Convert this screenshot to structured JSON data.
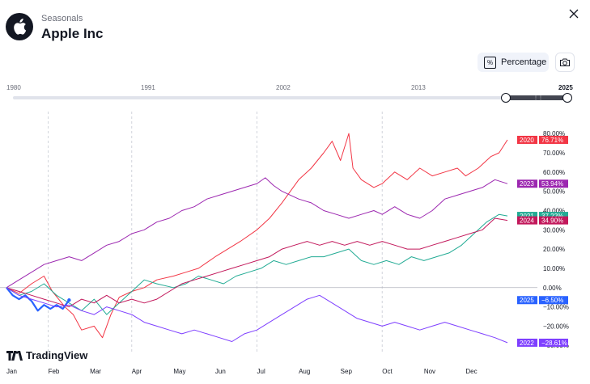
{
  "header": {
    "subtitle": "Seasonals",
    "title": "Apple Inc",
    "percentage_label": "Percentage",
    "percentage_icon": "%"
  },
  "icons": {
    "logo": "apple-logo-icon",
    "close": "close-icon",
    "camera": "camera-icon"
  },
  "timeline": {
    "labels": [
      "1980",
      "1991",
      "2002",
      "2013",
      "2025"
    ],
    "range_start_year": 2020,
    "range_end_year": 2025
  },
  "branding": {
    "name": "TradingView"
  },
  "chart_data": {
    "type": "line",
    "title": "",
    "xlabel": "",
    "ylabel": "",
    "x_ticks": [
      "Jan",
      "Feb",
      "Mar",
      "Apr",
      "May",
      "Jun",
      "Jul",
      "Aug",
      "Sep",
      "Oct",
      "Nov",
      "Dec"
    ],
    "x_range": [
      1,
      13
    ],
    "y_ticks": [
      "80.00%",
      "70.00%",
      "60.00%",
      "50.00%",
      "40.00%",
      "30.00%",
      "20.00%",
      "10.00%",
      "0.00%",
      "−10.00%",
      "−20.00%",
      "−30.00%"
    ],
    "y_range": [
      -32,
      83
    ],
    "grid": {
      "vertical": "dashed",
      "horizontal": false
    },
    "series": [
      {
        "name": "2020",
        "color": "#f23645",
        "end_label": "76.71%",
        "points": [
          [
            1,
            0
          ],
          [
            1.3,
            -3
          ],
          [
            1.6,
            2
          ],
          [
            1.9,
            6
          ],
          [
            2.1,
            -2
          ],
          [
            2.4,
            -10
          ],
          [
            2.6,
            -14
          ],
          [
            2.8,
            -22
          ],
          [
            3.1,
            -20
          ],
          [
            3.3,
            -26
          ],
          [
            3.5,
            -14
          ],
          [
            3.7,
            -5
          ],
          [
            4,
            -2
          ],
          [
            4.3,
            0
          ],
          [
            4.6,
            4
          ],
          [
            5,
            6
          ],
          [
            5.3,
            8
          ],
          [
            5.6,
            10
          ],
          [
            6,
            16
          ],
          [
            6.3,
            20
          ],
          [
            6.6,
            24
          ],
          [
            7,
            30
          ],
          [
            7.3,
            36
          ],
          [
            7.6,
            44
          ],
          [
            7.8,
            50
          ],
          [
            8,
            56
          ],
          [
            8.3,
            62
          ],
          [
            8.6,
            70
          ],
          [
            8.8,
            76
          ],
          [
            9,
            66
          ],
          [
            9.2,
            80
          ],
          [
            9.3,
            62
          ],
          [
            9.5,
            56
          ],
          [
            9.8,
            52
          ],
          [
            10,
            54
          ],
          [
            10.3,
            60
          ],
          [
            10.6,
            56
          ],
          [
            10.9,
            62
          ],
          [
            11.2,
            58
          ],
          [
            11.5,
            60
          ],
          [
            11.8,
            62
          ],
          [
            12,
            58
          ],
          [
            12.3,
            62
          ],
          [
            12.6,
            68
          ],
          [
            12.8,
            70
          ],
          [
            13,
            76.71
          ]
        ]
      },
      {
        "name": "2023",
        "color": "#9c27b0",
        "end_label": "53.94%",
        "points": [
          [
            1,
            0
          ],
          [
            1.3,
            4
          ],
          [
            1.6,
            8
          ],
          [
            1.9,
            12
          ],
          [
            2.2,
            14
          ],
          [
            2.5,
            16
          ],
          [
            2.8,
            14
          ],
          [
            3.1,
            18
          ],
          [
            3.4,
            22
          ],
          [
            3.7,
            24
          ],
          [
            4,
            28
          ],
          [
            4.3,
            30
          ],
          [
            4.6,
            34
          ],
          [
            4.9,
            36
          ],
          [
            5.2,
            40
          ],
          [
            5.5,
            42
          ],
          [
            5.8,
            46
          ],
          [
            6.1,
            48
          ],
          [
            6.4,
            50
          ],
          [
            6.7,
            52
          ],
          [
            7,
            54
          ],
          [
            7.2,
            57
          ],
          [
            7.4,
            53
          ],
          [
            7.6,
            50
          ],
          [
            7.8,
            48
          ],
          [
            8,
            46
          ],
          [
            8.3,
            44
          ],
          [
            8.6,
            40
          ],
          [
            8.9,
            38
          ],
          [
            9.2,
            36
          ],
          [
            9.5,
            38
          ],
          [
            9.8,
            40
          ],
          [
            10,
            38
          ],
          [
            10.3,
            42
          ],
          [
            10.6,
            38
          ],
          [
            10.9,
            36
          ],
          [
            11.2,
            40
          ],
          [
            11.5,
            46
          ],
          [
            11.8,
            48
          ],
          [
            12.1,
            50
          ],
          [
            12.4,
            52
          ],
          [
            12.7,
            56
          ],
          [
            13,
            53.94
          ]
        ]
      },
      {
        "name": "2021",
        "color": "#22ab94",
        "end_label": "37.22%",
        "points": [
          [
            1,
            0
          ],
          [
            1.3,
            -4
          ],
          [
            1.6,
            -2
          ],
          [
            1.9,
            2
          ],
          [
            2.2,
            -4
          ],
          [
            2.5,
            -8
          ],
          [
            2.8,
            -12
          ],
          [
            3.1,
            -6
          ],
          [
            3.4,
            -14
          ],
          [
            3.7,
            -8
          ],
          [
            4,
            -2
          ],
          [
            4.3,
            4
          ],
          [
            4.6,
            2
          ],
          [
            5,
            0
          ],
          [
            5.3,
            2
          ],
          [
            5.6,
            6
          ],
          [
            5.9,
            4
          ],
          [
            6.2,
            2
          ],
          [
            6.5,
            6
          ],
          [
            6.8,
            8
          ],
          [
            7.1,
            10
          ],
          [
            7.4,
            14
          ],
          [
            7.7,
            12
          ],
          [
            8,
            14
          ],
          [
            8.3,
            16
          ],
          [
            8.6,
            16
          ],
          [
            8.9,
            18
          ],
          [
            9.2,
            20
          ],
          [
            9.5,
            14
          ],
          [
            9.8,
            12
          ],
          [
            10.1,
            14
          ],
          [
            10.4,
            12
          ],
          [
            10.7,
            16
          ],
          [
            11,
            14
          ],
          [
            11.3,
            16
          ],
          [
            11.6,
            18
          ],
          [
            11.9,
            22
          ],
          [
            12.2,
            28
          ],
          [
            12.5,
            34
          ],
          [
            12.8,
            38
          ],
          [
            13,
            37.22
          ]
        ]
      },
      {
        "name": "2024",
        "color": "#c2185b",
        "end_label": "34.90%",
        "points": [
          [
            1,
            0
          ],
          [
            1.3,
            -2
          ],
          [
            1.6,
            -4
          ],
          [
            1.9,
            -6
          ],
          [
            2.2,
            -8
          ],
          [
            2.5,
            -10
          ],
          [
            2.8,
            -6
          ],
          [
            3.1,
            -8
          ],
          [
            3.4,
            -4
          ],
          [
            3.7,
            -8
          ],
          [
            4,
            -6
          ],
          [
            4.3,
            -8
          ],
          [
            4.6,
            -6
          ],
          [
            4.9,
            -2
          ],
          [
            5.2,
            2
          ],
          [
            5.5,
            4
          ],
          [
            5.8,
            6
          ],
          [
            6.1,
            8
          ],
          [
            6.4,
            10
          ],
          [
            6.7,
            12
          ],
          [
            7,
            14
          ],
          [
            7.3,
            16
          ],
          [
            7.6,
            20
          ],
          [
            7.9,
            22
          ],
          [
            8.2,
            24
          ],
          [
            8.5,
            22
          ],
          [
            8.8,
            24
          ],
          [
            9.1,
            22
          ],
          [
            9.4,
            24
          ],
          [
            9.7,
            22
          ],
          [
            10,
            24
          ],
          [
            10.3,
            22
          ],
          [
            10.6,
            20
          ],
          [
            10.9,
            20
          ],
          [
            11.2,
            22
          ],
          [
            11.5,
            24
          ],
          [
            11.8,
            26
          ],
          [
            12.1,
            28
          ],
          [
            12.4,
            30
          ],
          [
            12.7,
            36
          ],
          [
            13,
            34.9
          ]
        ]
      },
      {
        "name": "2025",
        "color": "#2962ff",
        "end_label": "−6.50%",
        "points": [
          [
            1,
            0
          ],
          [
            1.15,
            -4
          ],
          [
            1.3,
            -6
          ],
          [
            1.45,
            -4
          ],
          [
            1.6,
            -7
          ],
          [
            1.75,
            -12
          ],
          [
            1.9,
            -9
          ],
          [
            2.05,
            -11
          ],
          [
            2.2,
            -9
          ],
          [
            2.35,
            -11
          ],
          [
            2.5,
            -6.5
          ]
        ]
      },
      {
        "name": "2022",
        "color": "#7e3fff",
        "end_label": "−28.61%",
        "points": [
          [
            1,
            0
          ],
          [
            1.3,
            -4
          ],
          [
            1.6,
            -6
          ],
          [
            1.9,
            -8
          ],
          [
            2.2,
            -10
          ],
          [
            2.5,
            -9
          ],
          [
            2.8,
            -12
          ],
          [
            3.1,
            -14
          ],
          [
            3.4,
            -10
          ],
          [
            3.7,
            -12
          ],
          [
            4,
            -14
          ],
          [
            4.3,
            -18
          ],
          [
            4.6,
            -20
          ],
          [
            4.9,
            -22
          ],
          [
            5.2,
            -24
          ],
          [
            5.5,
            -22
          ],
          [
            5.8,
            -24
          ],
          [
            6.1,
            -26
          ],
          [
            6.4,
            -28
          ],
          [
            6.7,
            -24
          ],
          [
            7,
            -22
          ],
          [
            7.3,
            -18
          ],
          [
            7.6,
            -14
          ],
          [
            7.9,
            -10
          ],
          [
            8.2,
            -6
          ],
          [
            8.5,
            -4
          ],
          [
            8.8,
            -8
          ],
          [
            9.1,
            -12
          ],
          [
            9.4,
            -16
          ],
          [
            9.7,
            -18
          ],
          [
            10,
            -20
          ],
          [
            10.3,
            -18
          ],
          [
            10.6,
            -20
          ],
          [
            10.9,
            -22
          ],
          [
            11.2,
            -20
          ],
          [
            11.5,
            -18
          ],
          [
            11.8,
            -20
          ],
          [
            12.1,
            -22
          ],
          [
            12.4,
            -24
          ],
          [
            12.7,
            -26
          ],
          [
            13,
            -28.61
          ]
        ]
      }
    ]
  }
}
